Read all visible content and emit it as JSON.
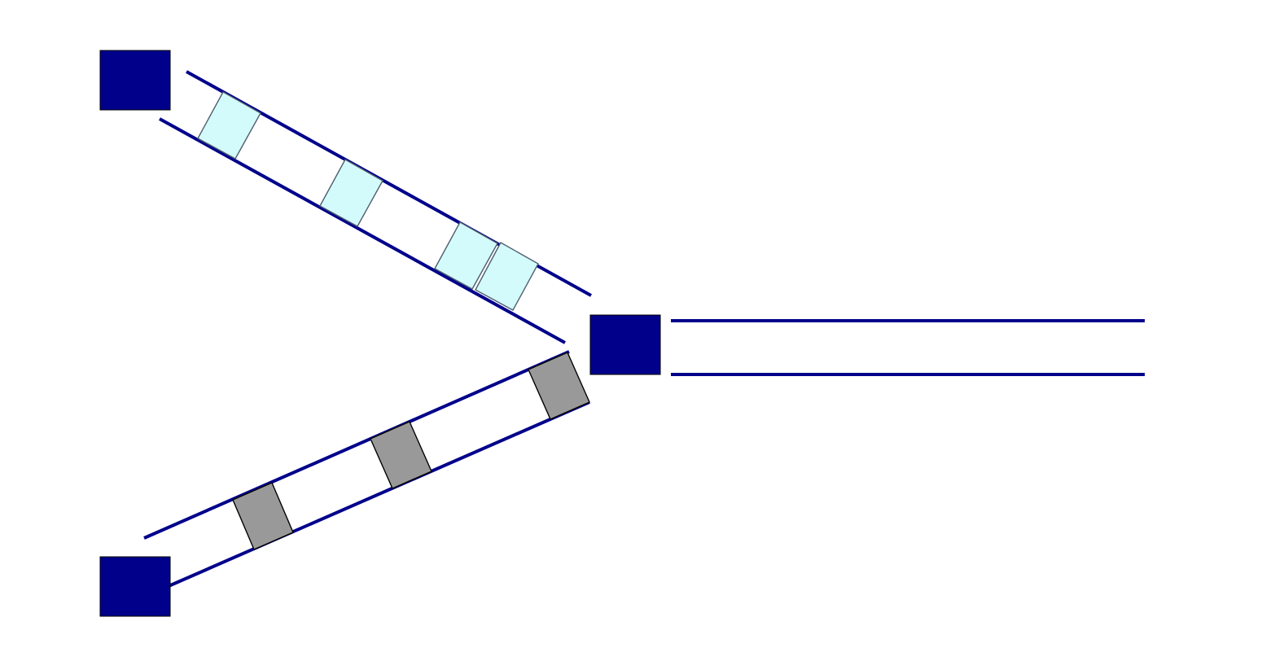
{
  "colors": {
    "background": "#ffffff",
    "node": "#00008b",
    "rail": "#00008b",
    "item_upper": "#d4fbfb",
    "item_upper_stroke": "#4f5f6f",
    "item_lower": "#999999",
    "item_lower_stroke": "#000000"
  },
  "nodes": [
    {
      "id": "source-top"
    },
    {
      "id": "merge"
    },
    {
      "id": "source-bottom"
    }
  ],
  "conveyors": [
    {
      "id": "upper-input",
      "from": "source-top",
      "to": "merge",
      "items": 4
    },
    {
      "id": "lower-input",
      "from": "source-bottom",
      "to": "merge",
      "items": 3
    },
    {
      "id": "output",
      "from": "merge",
      "to": "exit",
      "items": 0
    }
  ]
}
